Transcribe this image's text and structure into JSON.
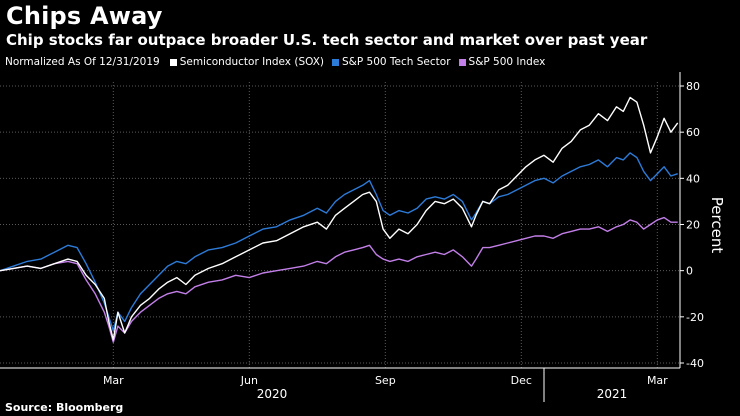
{
  "header": {
    "title": "Chips Away",
    "subtitle": "Chip stocks far outpace broader U.S. tech sector and market over past year"
  },
  "legend": {
    "note": "Normalized As Of 12/31/2019"
  },
  "footer": {
    "source": "Source: Bloomberg"
  },
  "chart_data": {
    "type": "line",
    "title": "Chips Away",
    "subtitle": "Chip stocks far outpace broader U.S. tech sector and market over past year",
    "xlabel": "",
    "ylabel": "Percent",
    "ylim": [
      -40,
      80
    ],
    "xlim": [
      0,
      15
    ],
    "x_unit": "months since 12/31/2019",
    "yticks": [
      -40,
      -20,
      0,
      20,
      40,
      60,
      80
    ],
    "ytick_labels": [
      "-40",
      "-20",
      "0",
      "20",
      "40",
      "60",
      "80"
    ],
    "xticks": [
      {
        "x": 2.5,
        "label": "Mar"
      },
      {
        "x": 5.5,
        "label": "Jun"
      },
      {
        "x": 8.5,
        "label": "Sep"
      },
      {
        "x": 11.5,
        "label": "Dec"
      },
      {
        "x": 14.5,
        "label": "Mar"
      }
    ],
    "year_labels": [
      {
        "x": 6.0,
        "label": "2020"
      },
      {
        "x": 13.5,
        "label": "2021"
      }
    ],
    "grid": true,
    "legend_position": "top-left",
    "series": [
      {
        "name": "Semiconductor Index (SOX)",
        "color": "#ffffff",
        "points": [
          [
            0,
            0
          ],
          [
            0.3,
            1
          ],
          [
            0.6,
            2
          ],
          [
            0.9,
            1
          ],
          [
            1.2,
            3
          ],
          [
            1.5,
            5
          ],
          [
            1.7,
            4
          ],
          [
            1.9,
            -2
          ],
          [
            2.1,
            -6
          ],
          [
            2.3,
            -12
          ],
          [
            2.4,
            -22
          ],
          [
            2.5,
            -30
          ],
          [
            2.6,
            -18
          ],
          [
            2.75,
            -27
          ],
          [
            2.9,
            -20
          ],
          [
            3.1,
            -15
          ],
          [
            3.3,
            -12
          ],
          [
            3.5,
            -8
          ],
          [
            3.7,
            -5
          ],
          [
            3.9,
            -3
          ],
          [
            4.1,
            -6
          ],
          [
            4.3,
            -2
          ],
          [
            4.6,
            1
          ],
          [
            4.9,
            3
          ],
          [
            5.2,
            6
          ],
          [
            5.5,
            9
          ],
          [
            5.8,
            12
          ],
          [
            6.1,
            13
          ],
          [
            6.4,
            16
          ],
          [
            6.7,
            19
          ],
          [
            7.0,
            21
          ],
          [
            7.2,
            18
          ],
          [
            7.4,
            24
          ],
          [
            7.6,
            27
          ],
          [
            7.8,
            30
          ],
          [
            8.0,
            33
          ],
          [
            8.15,
            34
          ],
          [
            8.3,
            30
          ],
          [
            8.45,
            18
          ],
          [
            8.6,
            14
          ],
          [
            8.8,
            18
          ],
          [
            9.0,
            16
          ],
          [
            9.2,
            20
          ],
          [
            9.4,
            26
          ],
          [
            9.6,
            30
          ],
          [
            9.8,
            29
          ],
          [
            10.0,
            31
          ],
          [
            10.2,
            27
          ],
          [
            10.4,
            19
          ],
          [
            10.5,
            24
          ],
          [
            10.65,
            30
          ],
          [
            10.8,
            29
          ],
          [
            11.0,
            35
          ],
          [
            11.2,
            37
          ],
          [
            11.4,
            41
          ],
          [
            11.6,
            45
          ],
          [
            11.8,
            48
          ],
          [
            12.0,
            50
          ],
          [
            12.2,
            47
          ],
          [
            12.4,
            53
          ],
          [
            12.6,
            56
          ],
          [
            12.8,
            61
          ],
          [
            13.0,
            63
          ],
          [
            13.2,
            68
          ],
          [
            13.4,
            65
          ],
          [
            13.6,
            71
          ],
          [
            13.75,
            69
          ],
          [
            13.9,
            75
          ],
          [
            14.05,
            73
          ],
          [
            14.2,
            63
          ],
          [
            14.35,
            51
          ],
          [
            14.5,
            58
          ],
          [
            14.65,
            66
          ],
          [
            14.8,
            60
          ],
          [
            14.95,
            64
          ]
        ]
      },
      {
        "name": "S&P 500 Tech Sector",
        "color": "#2d7bd8",
        "points": [
          [
            0,
            0
          ],
          [
            0.3,
            2
          ],
          [
            0.6,
            4
          ],
          [
            0.9,
            5
          ],
          [
            1.2,
            8
          ],
          [
            1.5,
            11
          ],
          [
            1.7,
            10
          ],
          [
            1.9,
            3
          ],
          [
            2.1,
            -5
          ],
          [
            2.3,
            -14
          ],
          [
            2.4,
            -20
          ],
          [
            2.5,
            -26
          ],
          [
            2.6,
            -18
          ],
          [
            2.75,
            -22
          ],
          [
            2.9,
            -16
          ],
          [
            3.1,
            -10
          ],
          [
            3.3,
            -6
          ],
          [
            3.5,
            -2
          ],
          [
            3.7,
            2
          ],
          [
            3.9,
            4
          ],
          [
            4.1,
            3
          ],
          [
            4.3,
            6
          ],
          [
            4.6,
            9
          ],
          [
            4.9,
            10
          ],
          [
            5.2,
            12
          ],
          [
            5.5,
            15
          ],
          [
            5.8,
            18
          ],
          [
            6.1,
            19
          ],
          [
            6.4,
            22
          ],
          [
            6.7,
            24
          ],
          [
            7.0,
            27
          ],
          [
            7.2,
            25
          ],
          [
            7.4,
            30
          ],
          [
            7.6,
            33
          ],
          [
            7.8,
            35
          ],
          [
            8.0,
            37
          ],
          [
            8.15,
            39
          ],
          [
            8.3,
            33
          ],
          [
            8.45,
            26
          ],
          [
            8.6,
            24
          ],
          [
            8.8,
            26
          ],
          [
            9.0,
            25
          ],
          [
            9.2,
            27
          ],
          [
            9.4,
            31
          ],
          [
            9.6,
            32
          ],
          [
            9.8,
            31
          ],
          [
            10.0,
            33
          ],
          [
            10.2,
            30
          ],
          [
            10.4,
            22
          ],
          [
            10.5,
            25
          ],
          [
            10.65,
            30
          ],
          [
            10.8,
            29
          ],
          [
            11.0,
            32
          ],
          [
            11.2,
            33
          ],
          [
            11.4,
            35
          ],
          [
            11.6,
            37
          ],
          [
            11.8,
            39
          ],
          [
            12.0,
            40
          ],
          [
            12.2,
            38
          ],
          [
            12.4,
            41
          ],
          [
            12.6,
            43
          ],
          [
            12.8,
            45
          ],
          [
            13.0,
            46
          ],
          [
            13.2,
            48
          ],
          [
            13.4,
            45
          ],
          [
            13.6,
            49
          ],
          [
            13.75,
            48
          ],
          [
            13.9,
            51
          ],
          [
            14.05,
            49
          ],
          [
            14.2,
            43
          ],
          [
            14.35,
            39
          ],
          [
            14.5,
            42
          ],
          [
            14.65,
            45
          ],
          [
            14.8,
            41
          ],
          [
            14.95,
            42
          ]
        ]
      },
      {
        "name": "S&P 500 Index",
        "color": "#c27fe8",
        "points": [
          [
            0,
            0
          ],
          [
            0.3,
            1
          ],
          [
            0.6,
            2
          ],
          [
            0.9,
            1
          ],
          [
            1.2,
            3
          ],
          [
            1.5,
            4
          ],
          [
            1.7,
            3
          ],
          [
            1.9,
            -4
          ],
          [
            2.1,
            -10
          ],
          [
            2.3,
            -18
          ],
          [
            2.4,
            -24
          ],
          [
            2.5,
            -31
          ],
          [
            2.6,
            -24
          ],
          [
            2.75,
            -27
          ],
          [
            2.9,
            -22
          ],
          [
            3.1,
            -18
          ],
          [
            3.3,
            -15
          ],
          [
            3.5,
            -12
          ],
          [
            3.7,
            -10
          ],
          [
            3.9,
            -9
          ],
          [
            4.1,
            -10
          ],
          [
            4.3,
            -7
          ],
          [
            4.6,
            -5
          ],
          [
            4.9,
            -4
          ],
          [
            5.2,
            -2
          ],
          [
            5.5,
            -3
          ],
          [
            5.8,
            -1
          ],
          [
            6.1,
            0
          ],
          [
            6.4,
            1
          ],
          [
            6.7,
            2
          ],
          [
            7.0,
            4
          ],
          [
            7.2,
            3
          ],
          [
            7.4,
            6
          ],
          [
            7.6,
            8
          ],
          [
            7.8,
            9
          ],
          [
            8.0,
            10
          ],
          [
            8.15,
            11
          ],
          [
            8.3,
            7
          ],
          [
            8.45,
            5
          ],
          [
            8.6,
            4
          ],
          [
            8.8,
            5
          ],
          [
            9.0,
            4
          ],
          [
            9.2,
            6
          ],
          [
            9.4,
            7
          ],
          [
            9.6,
            8
          ],
          [
            9.8,
            7
          ],
          [
            10.0,
            9
          ],
          [
            10.2,
            6
          ],
          [
            10.4,
            2
          ],
          [
            10.5,
            5
          ],
          [
            10.65,
            10
          ],
          [
            10.8,
            10
          ],
          [
            11.0,
            11
          ],
          [
            11.2,
            12
          ],
          [
            11.4,
            13
          ],
          [
            11.6,
            14
          ],
          [
            11.8,
            15
          ],
          [
            12.0,
            15
          ],
          [
            12.2,
            14
          ],
          [
            12.4,
            16
          ],
          [
            12.6,
            17
          ],
          [
            12.8,
            18
          ],
          [
            13.0,
            18
          ],
          [
            13.2,
            19
          ],
          [
            13.4,
            17
          ],
          [
            13.6,
            19
          ],
          [
            13.75,
            20
          ],
          [
            13.9,
            22
          ],
          [
            14.05,
            21
          ],
          [
            14.2,
            18
          ],
          [
            14.35,
            20
          ],
          [
            14.5,
            22
          ],
          [
            14.65,
            23
          ],
          [
            14.8,
            21
          ],
          [
            14.95,
            21
          ]
        ]
      }
    ]
  },
  "colors": {
    "background": "#000000",
    "grid": "#5a5a5a",
    "text": "#ffffff"
  }
}
